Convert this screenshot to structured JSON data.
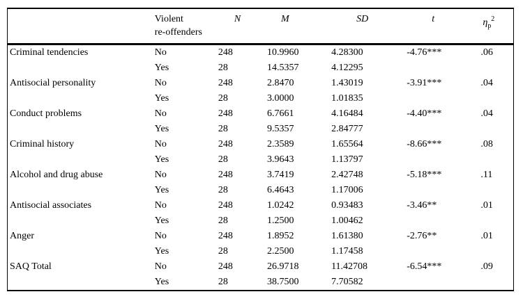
{
  "table": {
    "header": {
      "empty": "",
      "group_line1": "Violent",
      "group_line2": "re-offenders",
      "n": "N",
      "m": "M",
      "sd": "SD",
      "t": "t",
      "eta_base": "η",
      "eta_sub": "p",
      "eta_sup": "2"
    },
    "rows": [
      {
        "label": "Criminal tendencies",
        "group": "No",
        "n": "248",
        "m": "10.9960",
        "sd": "4.28300",
        "t": "-4.76***",
        "eta": ".06"
      },
      {
        "label": "",
        "group": "Yes",
        "n": "28",
        "m": "14.5357",
        "sd": "4.12295",
        "t": "",
        "eta": ""
      },
      {
        "label": "Antisocial personality",
        "group": "No",
        "n": "248",
        "m": "2.8470",
        "sd": "1.43019",
        "t": "-3.91***",
        "eta": ".04"
      },
      {
        "label": "",
        "group": "Yes",
        "n": "28",
        "m": "3.0000",
        "sd": "1.01835",
        "t": "",
        "eta": ""
      },
      {
        "label": "Conduct problems",
        "group": "No",
        "n": "248",
        "m": "6.7661",
        "sd": "4.16484",
        "t": "-4.40***",
        "eta": ".04"
      },
      {
        "label": "",
        "group": "Yes",
        "n": "28",
        "m": "9.5357",
        "sd": "2.84777",
        "t": "",
        "eta": ""
      },
      {
        "label": "Criminal history",
        "group": "No",
        "n": "248",
        "m": "2.3589",
        "sd": "1.65564",
        "t": "-8.66***",
        "eta": ".08"
      },
      {
        "label": "",
        "group": "Yes",
        "n": "28",
        "m": "3.9643",
        "sd": "1.13797",
        "t": "",
        "eta": ""
      },
      {
        "label": "Alcohol and drug abuse",
        "group": "No",
        "n": "248",
        "m": "3.7419",
        "sd": "2.42748",
        "t": "-5.18***",
        "eta": ".11"
      },
      {
        "label": "",
        "group": "Yes",
        "n": "28",
        "m": "6.4643",
        "sd": "1.17006",
        "t": "",
        "eta": ""
      },
      {
        "label": "Antisocial associates",
        "group": "No",
        "n": "248",
        "m": "1.0242",
        "sd": "0.93483",
        "t": "-3.46**",
        "eta": ".01"
      },
      {
        "label": "",
        "group": "Yes",
        "n": "28",
        "m": "1.2500",
        "sd": "1.00462",
        "t": "",
        "eta": ""
      },
      {
        "label": "Anger",
        "group": "No",
        "n": "248",
        "m": "1.8952",
        "sd": "1.61380",
        "t": "-2.76**",
        "eta": ".01"
      },
      {
        "label": "",
        "group": "Yes",
        "n": "28",
        "m": "2.2500",
        "sd": "1.17458",
        "t": "",
        "eta": ""
      },
      {
        "label": "SAQ Total",
        "group": "No",
        "n": "248",
        "m": "26.9718",
        "sd": "11.42708",
        "t": "-6.54***",
        "eta": ".09"
      },
      {
        "label": "",
        "group": "Yes",
        "n": "28",
        "m": "38.7500",
        "sd": "7.70582",
        "t": "",
        "eta": ""
      }
    ]
  }
}
